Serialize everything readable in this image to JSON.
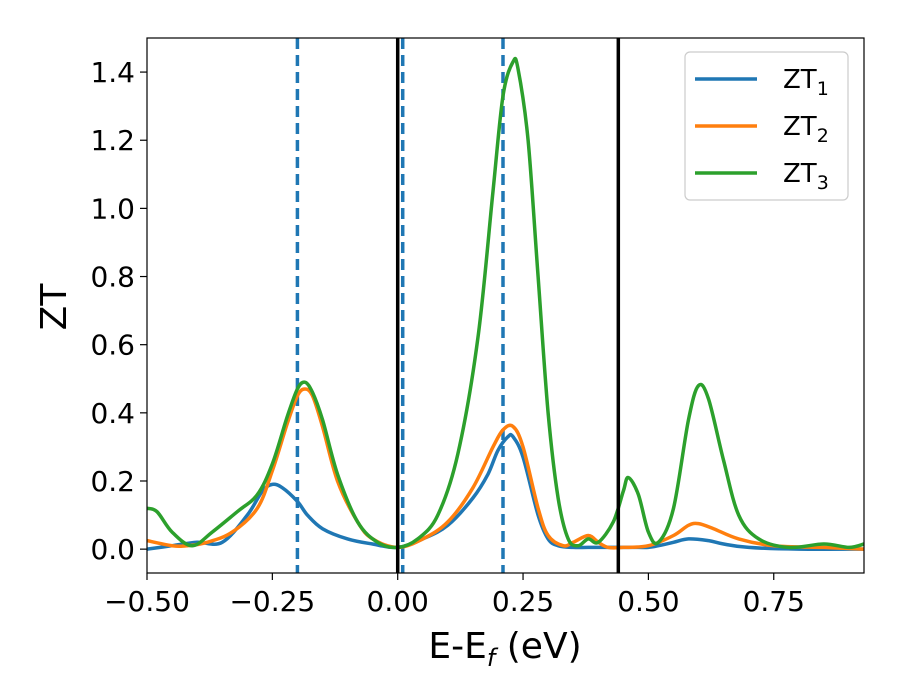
{
  "chart_data": {
    "type": "line",
    "xlabel": "E-E",
    "xlabel_sub": "f",
    "xlabel_unit": " (eV)",
    "ylabel": "ZT",
    "xlim": [
      -0.5,
      0.93
    ],
    "ylim": [
      -0.07,
      1.5
    ],
    "xticks": [
      -0.5,
      -0.25,
      0.0,
      0.25,
      0.5,
      0.75
    ],
    "xtick_labels": [
      "−0.50",
      "−0.25",
      "0.00",
      "0.25",
      "0.50",
      "0.75"
    ],
    "yticks": [
      0.0,
      0.2,
      0.4,
      0.6,
      0.8,
      1.0,
      1.2,
      1.4
    ],
    "ytick_labels": [
      "0.0",
      "0.2",
      "0.4",
      "0.6",
      "0.8",
      "1.0",
      "1.2",
      "1.4"
    ],
    "legend_position": "top-right",
    "vlines_dashed": {
      "color": "#1f77b4",
      "x": [
        -0.2,
        0.01,
        0.21
      ]
    },
    "vlines_solid": {
      "color": "#000000",
      "x": [
        0.0,
        0.44
      ]
    },
    "series": [
      {
        "name": "ZT",
        "subscript": "1",
        "color": "#1f77b4",
        "x": [
          -0.5,
          -0.45,
          -0.4,
          -0.35,
          -0.3,
          -0.27,
          -0.25,
          -0.23,
          -0.2,
          -0.18,
          -0.15,
          -0.1,
          -0.05,
          0.0,
          0.05,
          0.1,
          0.15,
          0.18,
          0.2,
          0.22,
          0.23,
          0.25,
          0.28,
          0.3,
          0.32,
          0.35,
          0.38,
          0.42,
          0.45,
          0.48,
          0.5,
          0.52,
          0.55,
          0.58,
          0.62,
          0.65,
          0.7,
          0.8,
          0.93
        ],
        "y": [
          0.0,
          0.01,
          0.02,
          0.02,
          0.1,
          0.17,
          0.19,
          0.18,
          0.14,
          0.1,
          0.06,
          0.03,
          0.015,
          0.005,
          0.03,
          0.07,
          0.15,
          0.22,
          0.29,
          0.33,
          0.33,
          0.27,
          0.1,
          0.03,
          0.01,
          0.005,
          0.005,
          0.005,
          0.005,
          0.005,
          0.005,
          0.01,
          0.02,
          0.03,
          0.025,
          0.015,
          0.005,
          0.0,
          0.0
        ]
      },
      {
        "name": "ZT",
        "subscript": "2",
        "color": "#ff7f0e",
        "x": [
          -0.5,
          -0.45,
          -0.42,
          -0.38,
          -0.33,
          -0.28,
          -0.25,
          -0.22,
          -0.2,
          -0.185,
          -0.17,
          -0.15,
          -0.12,
          -0.08,
          -0.05,
          0.0,
          0.05,
          0.1,
          0.15,
          0.19,
          0.21,
          0.23,
          0.25,
          0.28,
          0.3,
          0.33,
          0.35,
          0.38,
          0.4,
          0.42,
          0.45,
          0.5,
          0.55,
          0.58,
          0.6,
          0.63,
          0.68,
          0.75,
          0.85,
          0.93
        ],
        "y": [
          0.025,
          0.01,
          0.01,
          0.02,
          0.05,
          0.12,
          0.23,
          0.37,
          0.45,
          0.47,
          0.45,
          0.36,
          0.2,
          0.08,
          0.03,
          0.005,
          0.03,
          0.08,
          0.18,
          0.3,
          0.35,
          0.36,
          0.3,
          0.12,
          0.04,
          0.01,
          0.02,
          0.04,
          0.02,
          0.005,
          0.005,
          0.01,
          0.04,
          0.07,
          0.075,
          0.06,
          0.03,
          0.01,
          0.005,
          0.0
        ]
      },
      {
        "name": "ZT",
        "subscript": "3",
        "color": "#2ca02c",
        "x": [
          -0.5,
          -0.48,
          -0.45,
          -0.41,
          -0.37,
          -0.32,
          -0.28,
          -0.25,
          -0.22,
          -0.2,
          -0.185,
          -0.17,
          -0.15,
          -0.12,
          -0.08,
          -0.04,
          0.0,
          0.04,
          0.08,
          0.12,
          0.16,
          0.19,
          0.21,
          0.23,
          0.24,
          0.26,
          0.28,
          0.3,
          0.32,
          0.34,
          0.36,
          0.38,
          0.4,
          0.43,
          0.45,
          0.46,
          0.48,
          0.5,
          0.52,
          0.55,
          0.58,
          0.6,
          0.62,
          0.65,
          0.68,
          0.72,
          0.78,
          0.85,
          0.9,
          0.93
        ],
        "y": [
          0.12,
          0.11,
          0.05,
          0.01,
          0.05,
          0.11,
          0.16,
          0.25,
          0.39,
          0.47,
          0.49,
          0.46,
          0.38,
          0.22,
          0.08,
          0.02,
          0.005,
          0.03,
          0.1,
          0.28,
          0.62,
          1.05,
          1.33,
          1.43,
          1.41,
          1.2,
          0.8,
          0.4,
          0.15,
          0.03,
          0.01,
          0.03,
          0.02,
          0.08,
          0.17,
          0.21,
          0.16,
          0.05,
          0.02,
          0.12,
          0.38,
          0.48,
          0.44,
          0.26,
          0.1,
          0.03,
          0.005,
          0.015,
          0.005,
          0.015
        ]
      }
    ]
  }
}
